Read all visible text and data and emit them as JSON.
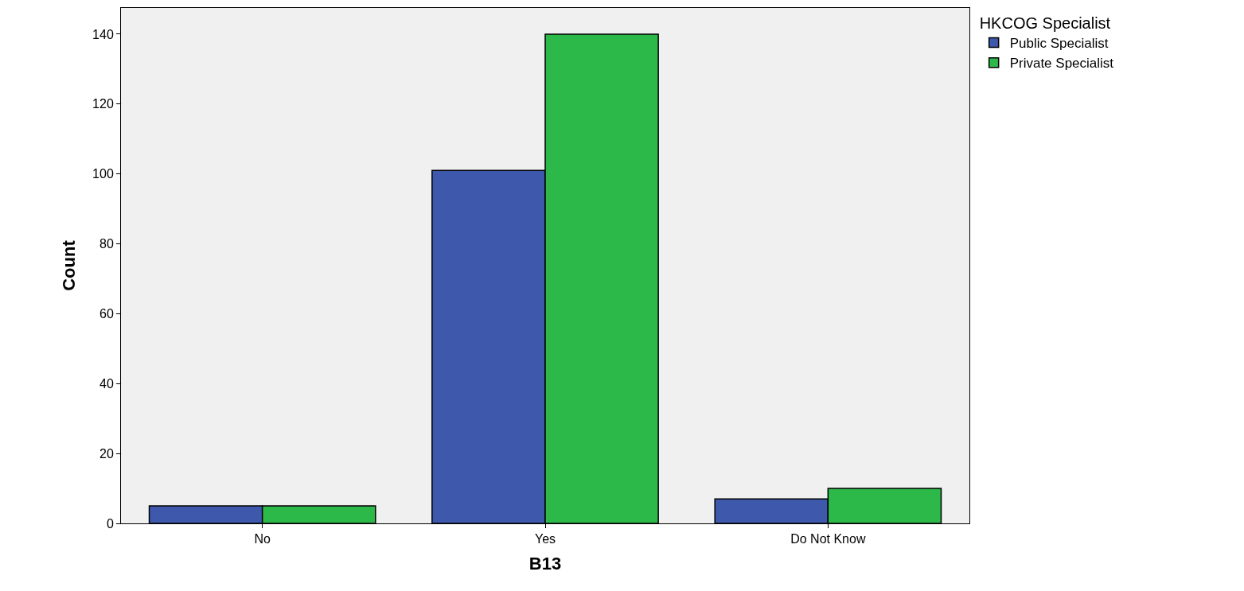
{
  "chart_data": {
    "type": "bar",
    "xlabel": "B13",
    "ylabel": "Count",
    "legend_title": "HKCOG Specialist",
    "categories": [
      "No",
      "Yes",
      "Do Not Know"
    ],
    "series": [
      {
        "name": "Public Specialist",
        "color": "#3e58ac",
        "values": [
          5,
          101,
          7
        ]
      },
      {
        "name": "Private Specialist",
        "color": "#2db84a",
        "values": [
          5,
          140,
          10
        ]
      }
    ],
    "ylim": [
      0,
      147.5
    ],
    "yticks": [
      0,
      20,
      40,
      60,
      80,
      100,
      120,
      140
    ],
    "grid": false,
    "legend": "top right"
  }
}
